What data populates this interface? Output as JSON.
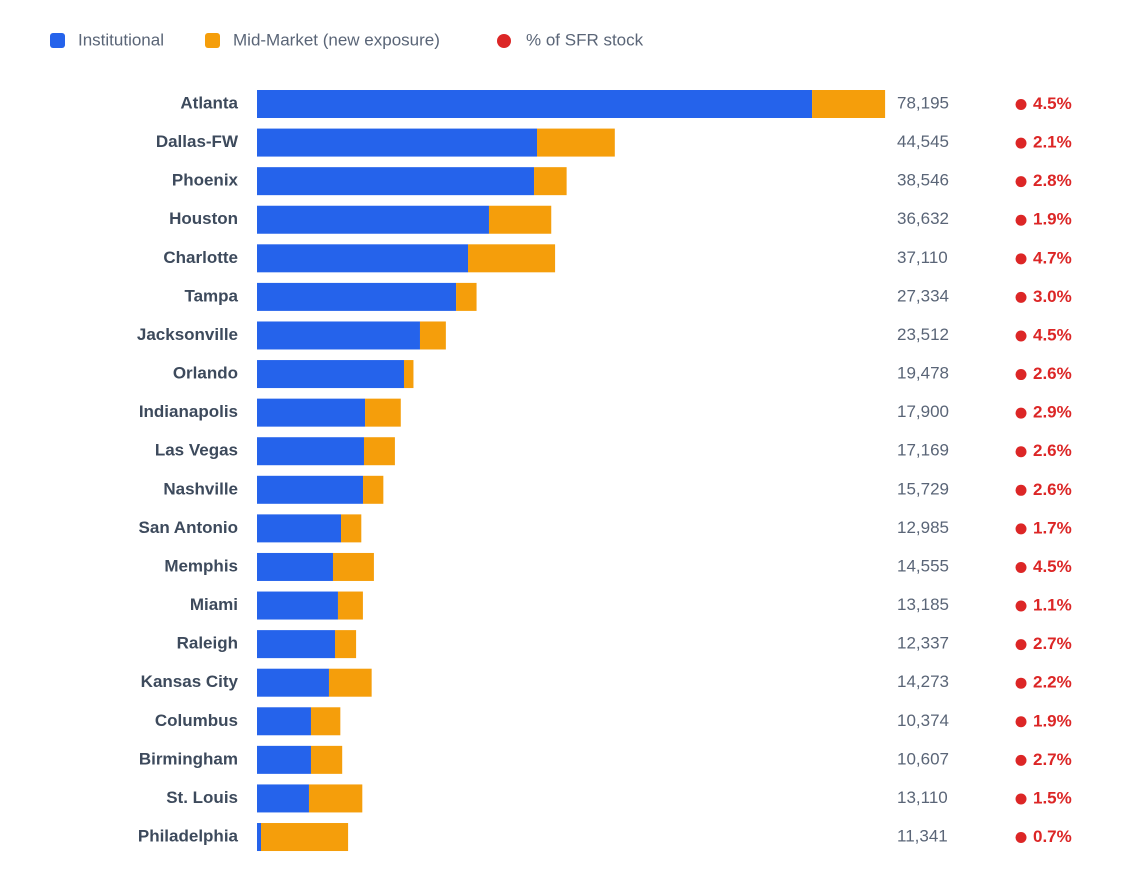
{
  "chart_data": {
    "type": "stacked-barh",
    "categories": [
      "Atlanta",
      "Dallas-FW",
      "Phoenix",
      "Houston",
      "Charlotte",
      "Tampa",
      "Jacksonville",
      "Orlando",
      "Indianapolis",
      "Las Vegas",
      "Nashville",
      "San Antonio",
      "Memphis",
      "Miami",
      "Raleigh",
      "Kansas City",
      "Columbus",
      "Birmingham",
      "St. Louis",
      "Philadelphia"
    ],
    "series": [
      {
        "name": "Institutional",
        "color": "#2563eb",
        "values": [
          69100,
          34860,
          34490,
          28880,
          26270,
          24780,
          20290,
          18300,
          13450,
          13320,
          13200,
          10460,
          9460,
          10080,
          9710,
          8960,
          6720,
          6720,
          6470,
          500
        ]
      },
      {
        "name": "Mid-Market (new exposure)",
        "color": "#f59e0b",
        "values": [
          9095,
          9685,
          4056,
          7752,
          10840,
          2554,
          3222,
          1178,
          4450,
          3849,
          2529,
          2525,
          5095,
          3105,
          2627,
          5313,
          3654,
          3887,
          6640,
          10841
        ]
      }
    ],
    "totals": {
      "values": [
        78195,
        44545,
        38546,
        36632,
        37110,
        27334,
        23512,
        19478,
        17900,
        17169,
        15729,
        12985,
        14555,
        13185,
        12337,
        14273,
        10374,
        10607,
        13110,
        11341
      ],
      "value_labels": [
        "78,195",
        "44,545",
        "38,546",
        "36,632",
        "37,110",
        "27,334",
        "23,512",
        "19,478",
        "17,900",
        "17,169",
        "15,729",
        "12,985",
        "14,555",
        "13,185",
        "12,337",
        "14,273",
        "10,374",
        "10,607",
        "13,110",
        "11,341"
      ]
    },
    "share": {
      "name": "% of SFR stock",
      "color": "#dc2626",
      "values": [
        4.5,
        2.1,
        2.8,
        1.9,
        4.7,
        3.0,
        4.5,
        2.6,
        2.9,
        2.6,
        2.6,
        1.7,
        4.5,
        1.1,
        2.7,
        2.2,
        1.9,
        2.7,
        1.5,
        0.7
      ],
      "value_labels": [
        "4.5%",
        "2.1%",
        "2.8%",
        "1.9%",
        "4.7%",
        "3.0%",
        "4.5%",
        "2.6%",
        "2.9%",
        "2.6%",
        "2.6%",
        "1.7%",
        "4.5%",
        "1.1%",
        "2.7%",
        "2.2%",
        "1.9%",
        "2.7%",
        "1.5%",
        "0.7%"
      ]
    },
    "xlim": [
      0,
      80000
    ]
  }
}
